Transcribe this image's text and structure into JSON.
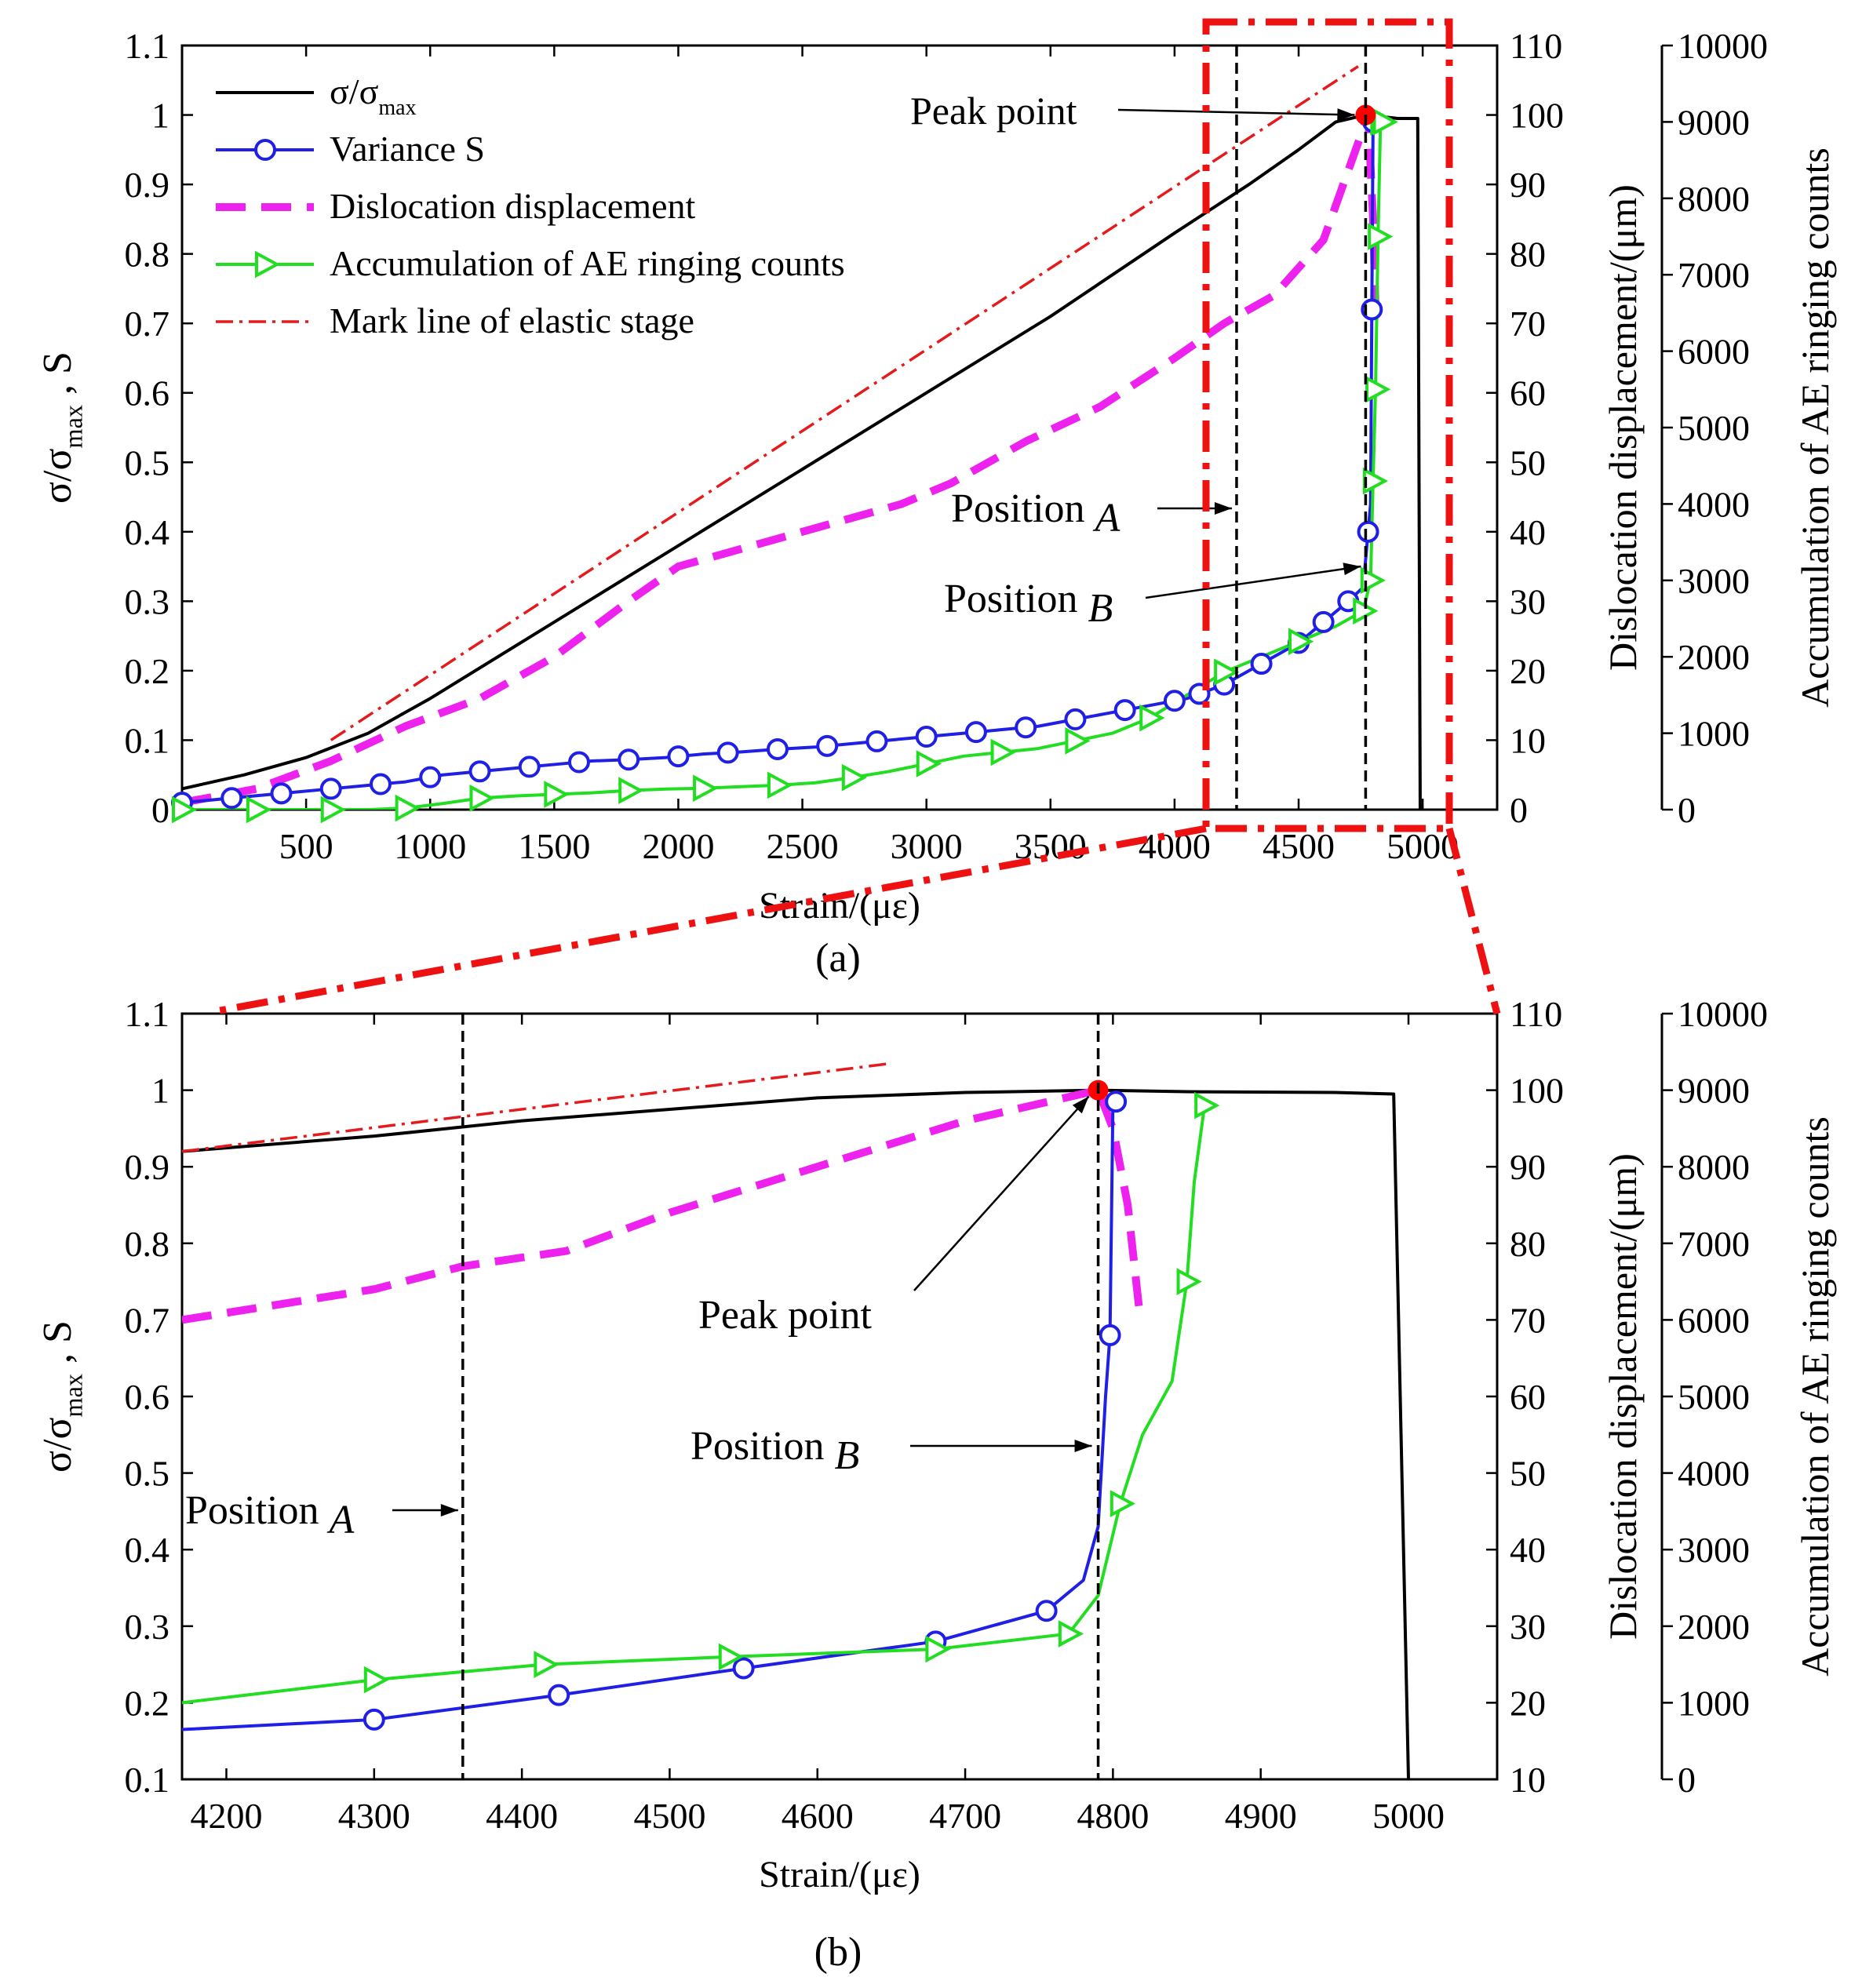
{
  "chart_data": [
    {
      "panel": "a",
      "type": "line",
      "caption": "(a)",
      "xlabel": "Strain/(με)",
      "ylabel_left": "σ/σmax , S",
      "ylabel_right1": "Dislocation displacement/(μm)",
      "ylabel_right2": "Accumulation of AE ringing counts",
      "xlim": [
        0,
        5300
      ],
      "ylim": [
        0,
        1.1
      ],
      "y2lim": [
        0,
        110
      ],
      "y3lim": [
        0,
        10000
      ],
      "xticks": [
        500,
        1000,
        1500,
        2000,
        2500,
        3000,
        3500,
        4000,
        4500,
        5000
      ],
      "yticks": [
        0,
        0.1,
        0.2,
        0.3,
        0.4,
        0.5,
        0.6,
        0.7,
        0.8,
        0.9,
        1,
        1.1
      ],
      "y2ticks": [
        0,
        10,
        20,
        30,
        40,
        50,
        60,
        70,
        80,
        90,
        100,
        110
      ],
      "y3ticks": [
        0,
        1000,
        2000,
        3000,
        4000,
        5000,
        6000,
        7000,
        8000,
        9000,
        10000
      ],
      "legend": [
        "σ/σmax",
        "Variance S",
        "Dislocation displacement",
        "Accumulation of AE ringing counts",
        "Mark line of elastic stage"
      ],
      "series": [
        {
          "name": "σ/σmax",
          "axis": "left",
          "x": [
            0,
            250,
            500,
            750,
            1000,
            1500,
            2000,
            2500,
            3000,
            3500,
            4000,
            4300,
            4500,
            4650,
            4770,
            4850,
            4900,
            4950,
            4980,
            4990
          ],
          "y": [
            0.03,
            0.05,
            0.075,
            0.11,
            0.16,
            0.27,
            0.38,
            0.49,
            0.6,
            0.71,
            0.83,
            0.9,
            0.95,
            0.99,
            1.0,
            0.997,
            0.995,
            0.995,
            0.995,
            0.0
          ]
        },
        {
          "name": "Variance S",
          "axis": "left",
          "x": [
            0,
            150,
            300,
            450,
            600,
            750,
            900,
            1050,
            1200,
            1350,
            1500,
            1650,
            1800,
            1950,
            2100,
            2250,
            2400,
            2550,
            2700,
            2850,
            3000,
            3150,
            3300,
            3450,
            3600,
            3750,
            3900,
            4050,
            4200,
            4350,
            4500,
            4600,
            4700,
            4760,
            4780,
            4790,
            4795,
            4800,
            4805
          ],
          "y": [
            0.01,
            0.015,
            0.02,
            0.025,
            0.03,
            0.035,
            0.04,
            0.05,
            0.055,
            0.06,
            0.065,
            0.07,
            0.072,
            0.075,
            0.08,
            0.083,
            0.087,
            0.09,
            0.095,
            0.1,
            0.105,
            0.11,
            0.115,
            0.12,
            0.13,
            0.14,
            0.15,
            0.16,
            0.18,
            0.21,
            0.24,
            0.27,
            0.3,
            0.32,
            0.4,
            0.44,
            0.72,
            0.99,
            0.99
          ],
          "markers_x": [
            0,
            200,
            400,
            600,
            800,
            1000,
            1200,
            1400,
            1600,
            1800,
            2000,
            2200,
            2400,
            2600,
            2800,
            3000,
            3200,
            3400,
            3600,
            3800,
            4000,
            4100,
            4200,
            4350,
            4500,
            4600,
            4700,
            4780,
            4795,
            4800
          ]
        },
        {
          "name": "Dislocation displacement",
          "axis": "right1",
          "x": [
            0,
            300,
            600,
            900,
            1200,
            1500,
            1800,
            2000,
            2300,
            2600,
            2900,
            3100,
            3400,
            3700,
            4000,
            4200,
            4400,
            4600,
            4700,
            4780,
            4800,
            4810
          ],
          "y": [
            1,
            3,
            7,
            12,
            16,
            22,
            30,
            35,
            38,
            41,
            44,
            47,
            53,
            58,
            65,
            70,
            74,
            82,
            92,
            100,
            85,
            72
          ]
        },
        {
          "name": "Accumulation of AE ringing counts",
          "axis": "right2",
          "x": [
            0,
            150,
            300,
            450,
            600,
            750,
            900,
            1050,
            1200,
            1350,
            1500,
            1650,
            1800,
            1950,
            2100,
            2250,
            2400,
            2550,
            2700,
            2850,
            3000,
            3150,
            3300,
            3450,
            3600,
            3750,
            3900,
            4050,
            4200,
            4350,
            4500,
            4650,
            4760,
            4790,
            4800,
            4810,
            4820,
            4830,
            4840
          ],
          "y": [
            0,
            0,
            0,
            0,
            0,
            0,
            20,
            80,
            150,
            180,
            200,
            220,
            250,
            270,
            280,
            300,
            320,
            350,
            420,
            500,
            600,
            700,
            750,
            800,
            900,
            1000,
            1200,
            1500,
            1800,
            2000,
            2200,
            2400,
            2600,
            3000,
            4300,
            5500,
            7500,
            9000,
            9000
          ]
        },
        {
          "name": "Mark line of elastic stage",
          "axis": "left",
          "x": [
            600,
            4740
          ],
          "y": [
            0.1,
            1.07
          ]
        }
      ],
      "annotations": {
        "peak_point": {
          "label": "Peak point",
          "x": 4770,
          "y": 1.0
        },
        "position_a": {
          "label": "Position",
          "italic": "A",
          "x": 4250
        },
        "position_b": {
          "label": "Position",
          "italic": "B",
          "x": 4770
        }
      }
    },
    {
      "panel": "b",
      "type": "line",
      "caption": "(b)",
      "xlabel": "Strain/(με)",
      "ylabel_left": "σ/σmax , S",
      "ylabel_right1": "Dislocation displacement/(μm)",
      "ylabel_right2": "Accumulation of AE ringing counts",
      "xlim": [
        4170,
        5060
      ],
      "ylim": [
        0.1,
        1.1
      ],
      "y2lim": [
        10,
        110
      ],
      "y3lim": [
        0,
        10000
      ],
      "xticks": [
        4200,
        4300,
        4400,
        4500,
        4600,
        4700,
        4800,
        4900,
        5000
      ],
      "yticks": [
        0.1,
        0.2,
        0.3,
        0.4,
        0.5,
        0.6,
        0.7,
        0.8,
        0.9,
        1,
        1.1
      ],
      "y2ticks": [
        10,
        20,
        30,
        40,
        50,
        60,
        70,
        80,
        90,
        100,
        110
      ],
      "y3ticks": [
        0,
        1000,
        2000,
        3000,
        4000,
        5000,
        6000,
        7000,
        8000,
        9000,
        10000
      ],
      "series": [
        {
          "name": "σ/σmax",
          "axis": "left",
          "x": [
            4170,
            4300,
            4400,
            4500,
            4600,
            4700,
            4790,
            4850,
            4950,
            4990,
            5000
          ],
          "y": [
            0.92,
            0.94,
            0.96,
            0.975,
            0.99,
            0.997,
            1.0,
            0.998,
            0.997,
            0.995,
            0.1
          ]
        },
        {
          "name": "Variance S",
          "axis": "left",
          "x": [
            4170,
            4300,
            4425,
            4550,
            4680,
            4755,
            4780,
            4790,
            4795,
            4798,
            4800
          ],
          "y": [
            0.165,
            0.178,
            0.21,
            0.245,
            0.28,
            0.32,
            0.36,
            0.43,
            0.6,
            0.68,
            0.985
          ],
          "markers_x": [
            4300,
            4425,
            4550,
            4680,
            4755,
            4798,
            4802
          ]
        },
        {
          "name": "Dislocation displacement",
          "axis": "right1",
          "x": [
            4170,
            4300,
            4360,
            4430,
            4500,
            4600,
            4700,
            4790,
            4800,
            4810,
            4818
          ],
          "y": [
            70,
            74,
            77,
            79,
            84,
            90,
            96,
            100,
            95,
            85,
            71
          ]
        },
        {
          "name": "Accumulation of AE ringing counts",
          "axis": "right2",
          "x": [
            4170,
            4300,
            4415,
            4540,
            4680,
            4770,
            4790,
            4805,
            4820,
            4840,
            4850,
            4855,
            4862
          ],
          "y": [
            1000,
            1300,
            1500,
            1600,
            1700,
            1900,
            2400,
            3600,
            4500,
            5200,
            6500,
            7800,
            8800
          ]
        },
        {
          "name": "Mark line of elastic stage",
          "axis": "left",
          "x": [
            4170,
            4650
          ],
          "y": [
            0.92,
            1.035
          ]
        }
      ],
      "annotations": {
        "peak_point": {
          "label": "Peak point",
          "x": 4790,
          "y": 1.0
        },
        "position_a": {
          "label": "Position",
          "italic": "A",
          "x": 4360
        },
        "position_b": {
          "label": "Position",
          "italic": "B",
          "x": 4790
        }
      }
    }
  ]
}
